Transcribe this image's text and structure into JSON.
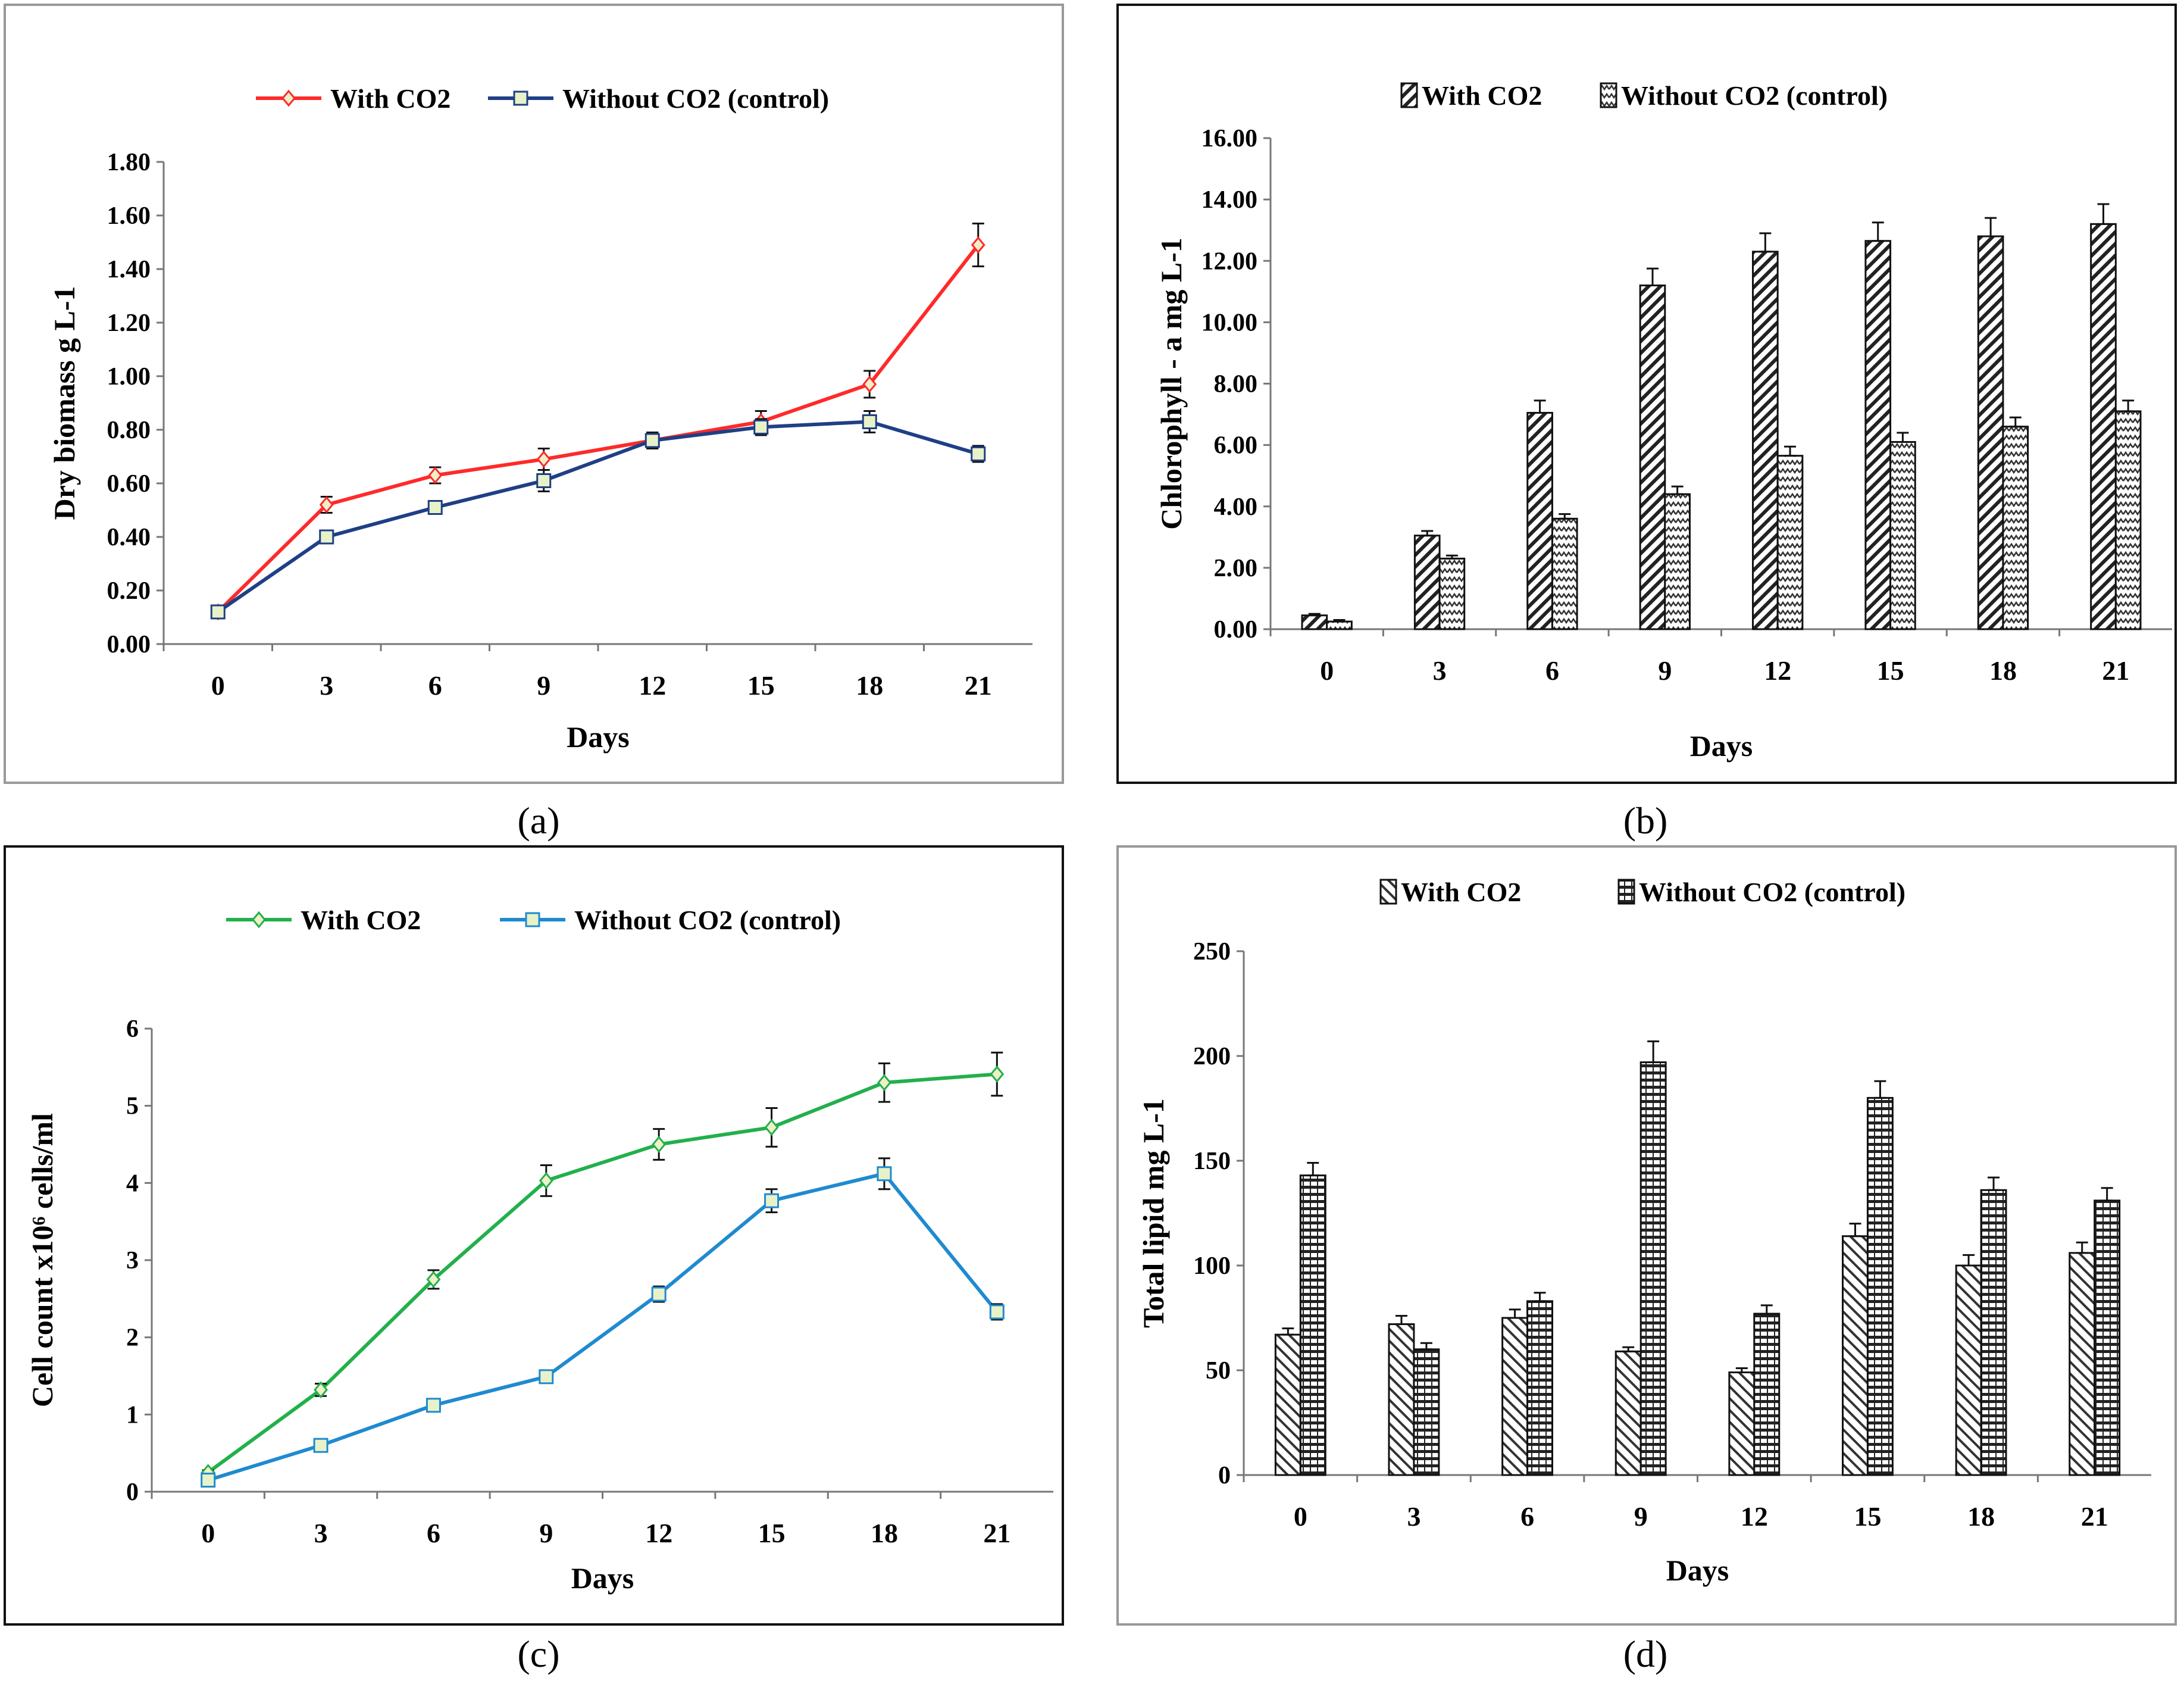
{
  "chart_data": [
    {
      "id": "a",
      "panel_label": "(a)",
      "type": "line",
      "x": [
        0,
        3,
        6,
        9,
        12,
        15,
        18,
        21
      ],
      "xlabel": "Days",
      "ylabel": "Dry biomass g L-1",
      "ylim": [
        0,
        1.8
      ],
      "yticks": [
        "0.00",
        "0.20",
        "0.40",
        "0.60",
        "0.80",
        "1.00",
        "1.20",
        "1.40",
        "1.60",
        "1.80"
      ],
      "legend_position": "top-center",
      "series": [
        {
          "name": "With CO2",
          "color": "#ff2a2a",
          "marker": "diamond",
          "values": [
            0.12,
            0.52,
            0.63,
            0.69,
            0.76,
            0.83,
            0.97,
            1.49
          ],
          "errors": [
            0.02,
            0.03,
            0.03,
            0.04,
            0.03,
            0.04,
            0.05,
            0.08
          ]
        },
        {
          "name": "Without CO2 (control)",
          "color": "#1f3f86",
          "marker": "square",
          "values": [
            0.12,
            0.4,
            0.51,
            0.61,
            0.76,
            0.81,
            0.83,
            0.71
          ],
          "errors": [
            0.02,
            0.02,
            0.02,
            0.04,
            0.03,
            0.03,
            0.04,
            0.03
          ]
        }
      ]
    },
    {
      "id": "b",
      "panel_label": "(b)",
      "type": "bar",
      "categories": [
        "0",
        "3",
        "6",
        "9",
        "12",
        "15",
        "18",
        "21"
      ],
      "xlabel": "Days",
      "ylabel": "Chlorophyll - a mg L-1",
      "ylim": [
        0,
        16
      ],
      "yticks": [
        "0.00",
        "2.00",
        "4.00",
        "6.00",
        "8.00",
        "10.00",
        "12.00",
        "14.00",
        "16.00"
      ],
      "legend_position": "top-center",
      "series": [
        {
          "name": "With CO2",
          "pattern": "diagonal",
          "values": [
            0.45,
            3.05,
            7.05,
            11.2,
            12.3,
            12.65,
            12.8,
            13.2
          ],
          "errors": [
            0.05,
            0.15,
            0.4,
            0.55,
            0.6,
            0.6,
            0.6,
            0.65
          ]
        },
        {
          "name": "Without CO2 (control)",
          "pattern": "zigzag",
          "values": [
            0.25,
            2.3,
            3.6,
            4.4,
            5.65,
            6.1,
            6.6,
            7.1
          ],
          "errors": [
            0.05,
            0.1,
            0.15,
            0.25,
            0.3,
            0.3,
            0.3,
            0.35
          ]
        }
      ]
    },
    {
      "id": "c",
      "panel_label": "(c)",
      "type": "line",
      "x": [
        0,
        3,
        6,
        9,
        12,
        15,
        18,
        21
      ],
      "xlabel": "Days",
      "ylabel": "Cell count x10⁶ cells/ml",
      "ylim": [
        0,
        6
      ],
      "yticks": [
        "0",
        "1",
        "2",
        "3",
        "4",
        "5",
        "6"
      ],
      "legend_position": "top-center",
      "series": [
        {
          "name": "With CO2",
          "color": "#22b04b",
          "marker": "diamond",
          "values": [
            0.25,
            1.32,
            2.75,
            4.03,
            4.5,
            4.72,
            5.3,
            5.41
          ],
          "errors": [
            0.03,
            0.08,
            0.12,
            0.2,
            0.2,
            0.25,
            0.25,
            0.28
          ]
        },
        {
          "name": "Without CO2 (control)",
          "color": "#1f8ad0",
          "marker": "square",
          "values": [
            0.15,
            0.6,
            1.12,
            1.49,
            2.56,
            3.77,
            4.12,
            2.33
          ],
          "errors": [
            0.03,
            0.05,
            0.07,
            0.08,
            0.1,
            0.15,
            0.2,
            0.1
          ]
        }
      ]
    },
    {
      "id": "d",
      "panel_label": "(d)",
      "type": "bar",
      "categories": [
        "0",
        "3",
        "6",
        "9",
        "12",
        "15",
        "18",
        "21"
      ],
      "xlabel": "Days",
      "ylabel": "Total lipid mg L-1",
      "ylim": [
        0,
        250
      ],
      "yticks": [
        "0",
        "50",
        "100",
        "150",
        "200",
        "250"
      ],
      "legend_position": "top-center",
      "series": [
        {
          "name": "With CO2",
          "pattern": "diagonal-back",
          "values": [
            67,
            72,
            75,
            59,
            49,
            114,
            100,
            106
          ],
          "errors": [
            3,
            4,
            4,
            2,
            2,
            6,
            5,
            5
          ]
        },
        {
          "name": "Without CO2 (control)",
          "pattern": "horizontal",
          "values": [
            143,
            60,
            83,
            197,
            77,
            180,
            136,
            131
          ],
          "errors": [
            6,
            3,
            4,
            10,
            4,
            8,
            6,
            6
          ]
        }
      ]
    }
  ]
}
